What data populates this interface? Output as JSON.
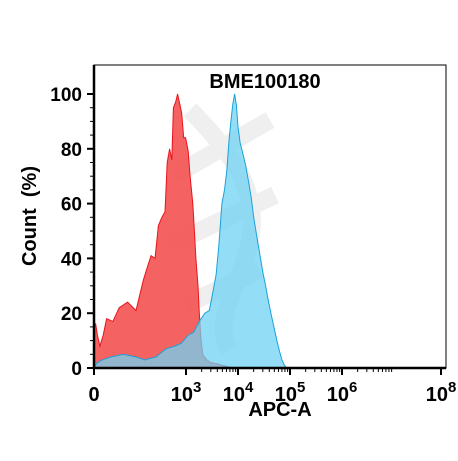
{
  "chart_data": {
    "type": "area",
    "title": "BME100180",
    "xlabel": "APC-A",
    "ylabel": "Count  (%)",
    "x_scale": "biexponential",
    "xlim": [
      -50,
      100000000
    ],
    "ylim": [
      0,
      100
    ],
    "y_ticks": [
      0,
      20,
      40,
      60,
      80,
      100
    ],
    "x_tick_labels": [
      {
        "base": "0",
        "exp": ""
      },
      {
        "base": "10",
        "exp": "3"
      },
      {
        "base": "10",
        "exp": "4"
      },
      {
        "base": "10",
        "exp": "5"
      },
      {
        "base": "10",
        "exp": "6"
      },
      {
        "base": "10",
        "exp": "8"
      }
    ],
    "grid": false,
    "legend": "none",
    "series": [
      {
        "color": "#f45555",
        "stroke": "#e8141c",
        "points": [
          [
            0,
            15
          ],
          [
            4,
            16
          ],
          [
            8,
            12
          ],
          [
            14,
            8
          ],
          [
            22,
            12
          ],
          [
            30,
            18
          ],
          [
            45,
            17
          ],
          [
            60,
            22
          ],
          [
            80,
            24
          ],
          [
            100,
            21
          ],
          [
            140,
            32
          ],
          [
            170,
            37
          ],
          [
            200,
            41
          ],
          [
            240,
            40
          ],
          [
            280,
            52
          ],
          [
            330,
            55
          ],
          [
            380,
            57
          ],
          [
            420,
            75
          ],
          [
            470,
            80
          ],
          [
            520,
            76
          ],
          [
            560,
            95
          ],
          [
            620,
            97
          ],
          [
            680,
            100
          ],
          [
            760,
            96
          ],
          [
            820,
            93
          ],
          [
            900,
            84
          ],
          [
            980,
            84
          ],
          [
            1100,
            79
          ],
          [
            1200,
            70
          ],
          [
            1350,
            60
          ],
          [
            1450,
            50
          ],
          [
            1550,
            40
          ],
          [
            1700,
            30
          ],
          [
            1800,
            20
          ],
          [
            1950,
            10
          ],
          [
            2100,
            5
          ],
          [
            2500,
            3
          ],
          [
            3000,
            2
          ],
          [
            4000,
            1.5
          ],
          [
            5000,
            1
          ],
          [
            6500,
            0.5
          ],
          [
            8000,
            0
          ]
        ]
      },
      {
        "color": "#6fd3f3",
        "stroke": "#1aa2d8",
        "points": [
          [
            0,
            0
          ],
          [
            3,
            1
          ],
          [
            8,
            2
          ],
          [
            20,
            3
          ],
          [
            40,
            4
          ],
          [
            70,
            5
          ],
          [
            100,
            4
          ],
          [
            150,
            3
          ],
          [
            250,
            4
          ],
          [
            400,
            7
          ],
          [
            600,
            8
          ],
          [
            800,
            9
          ],
          [
            1100,
            12
          ],
          [
            1400,
            13
          ],
          [
            1800,
            17
          ],
          [
            2300,
            20
          ],
          [
            2800,
            21
          ],
          [
            3300,
            28
          ],
          [
            3800,
            34
          ],
          [
            4300,
            45
          ],
          [
            4900,
            60
          ],
          [
            5500,
            65
          ],
          [
            6100,
            72
          ],
          [
            6700,
            83
          ],
          [
            7300,
            90
          ],
          [
            7900,
            96
          ],
          [
            8600,
            100
          ],
          [
            9300,
            96
          ],
          [
            10000,
            88
          ],
          [
            11000,
            82
          ],
          [
            12500,
            78
          ],
          [
            14000,
            74
          ],
          [
            16000,
            68
          ],
          [
            18000,
            62
          ],
          [
            20000,
            55
          ],
          [
            23000,
            48
          ],
          [
            26000,
            42
          ],
          [
            30000,
            35
          ],
          [
            34000,
            30
          ],
          [
            38000,
            25
          ],
          [
            43000,
            20
          ],
          [
            49000,
            15
          ],
          [
            56000,
            10
          ],
          [
            63000,
            6
          ],
          [
            70000,
            3
          ],
          [
            78000,
            1
          ],
          [
            86000,
            0
          ]
        ]
      }
    ]
  },
  "watermark": "watermark-logo"
}
